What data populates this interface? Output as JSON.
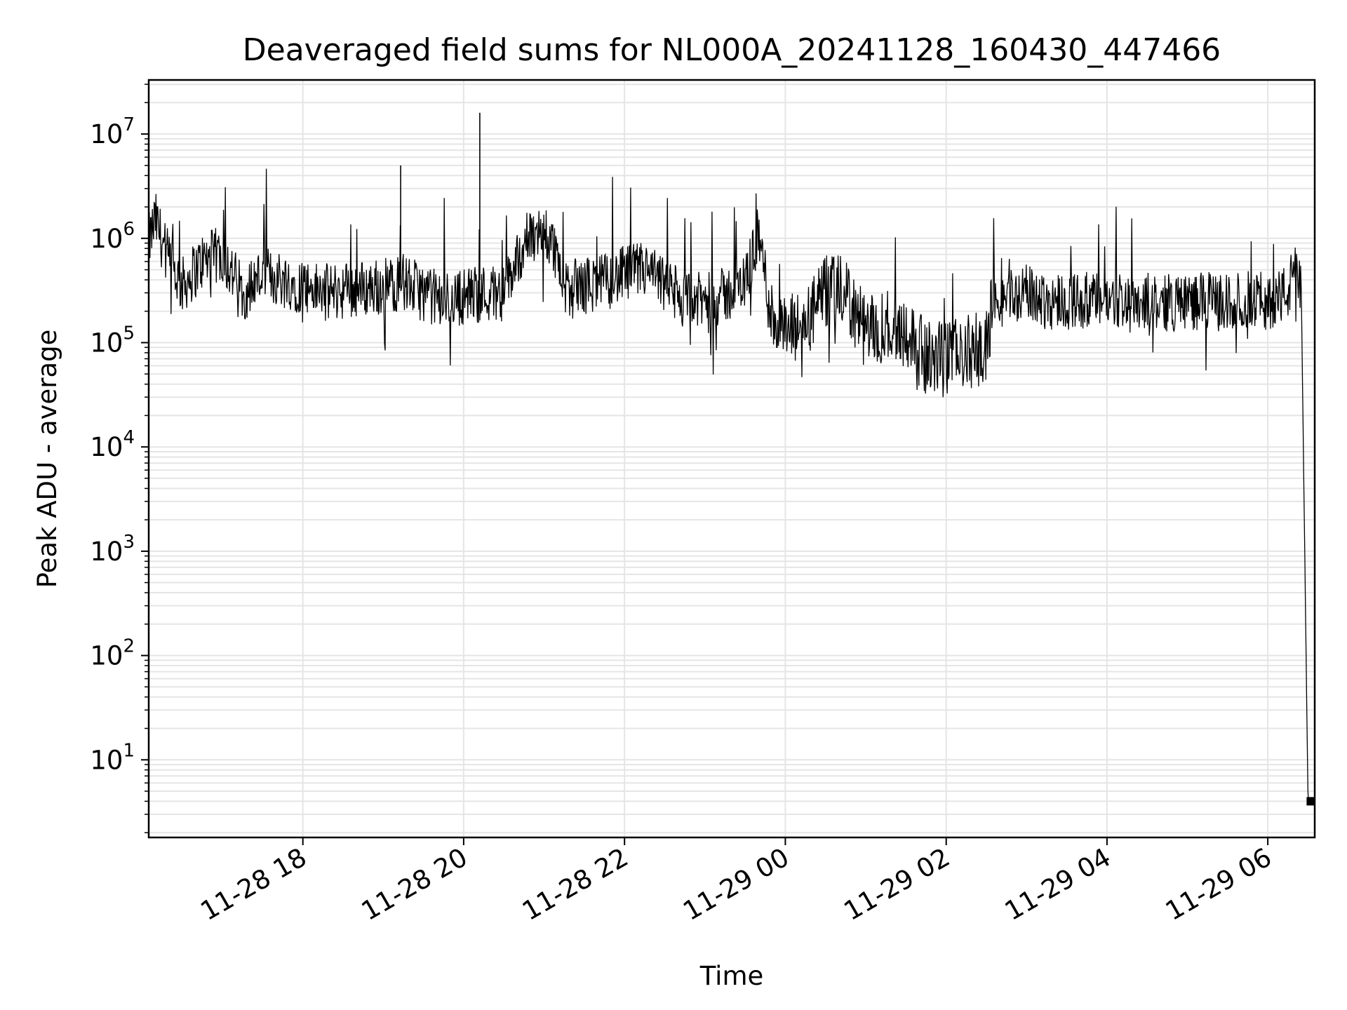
{
  "chart_data": {
    "type": "line",
    "title": "Deaveraged field sums for NL000A_20241128_160430_447466",
    "xlabel": "Time",
    "ylabel": "Peak ADU - average",
    "yscale": "log",
    "ylim": [
      1.8,
      33000000
    ],
    "xlim": [
      "2024-11-28 16:05",
      "2024-11-29 06:35"
    ],
    "grid": true,
    "line_color": "#000000",
    "grid_color": "#e5e5e5",
    "x_ticks": [
      {
        "time": "2024-11-28 18:00",
        "label": "11-28 18"
      },
      {
        "time": "2024-11-28 20:00",
        "label": "11-28 20"
      },
      {
        "time": "2024-11-28 22:00",
        "label": "11-28 22"
      },
      {
        "time": "2024-11-29 00:00",
        "label": "11-29 00"
      },
      {
        "time": "2024-11-29 02:00",
        "label": "11-29 02"
      },
      {
        "time": "2024-11-29 04:00",
        "label": "11-29 04"
      },
      {
        "time": "2024-11-29 06:00",
        "label": "11-29 06"
      }
    ],
    "y_ticks": [
      {
        "value": 10,
        "base": "10",
        "exp": "1"
      },
      {
        "value": 100,
        "base": "10",
        "exp": "2"
      },
      {
        "value": 1000,
        "base": "10",
        "exp": "3"
      },
      {
        "value": 10000,
        "base": "10",
        "exp": "4"
      },
      {
        "value": 100000,
        "base": "10",
        "exp": "5"
      },
      {
        "value": 1000000,
        "base": "10",
        "exp": "6"
      },
      {
        "value": 10000000,
        "base": "10",
        "exp": "7"
      }
    ],
    "series": [
      {
        "points": [
          [
            "2024-11-28 16:05",
            900000
          ],
          [
            "2024-11-28 16:10",
            1500000
          ],
          [
            "2024-11-28 16:20",
            600000
          ],
          [
            "2024-11-28 16:30",
            350000
          ],
          [
            "2024-11-28 16:45",
            600000
          ],
          [
            "2024-11-28 17:00",
            700000
          ],
          [
            "2024-11-28 17:15",
            300000
          ],
          [
            "2024-11-28 17:30",
            450000
          ],
          [
            "2024-11-28 17:45",
            400000
          ],
          [
            "2024-11-28 18:00",
            350000
          ],
          [
            "2024-11-28 18:15",
            300000
          ],
          [
            "2024-11-28 18:30",
            320000
          ],
          [
            "2024-11-28 18:45",
            330000
          ],
          [
            "2024-11-28 19:00",
            350000
          ],
          [
            "2024-11-28 19:15",
            380000
          ],
          [
            "2024-11-28 19:30",
            300000
          ],
          [
            "2024-11-28 19:45",
            250000
          ],
          [
            "2024-11-28 20:00",
            280000
          ],
          [
            "2024-11-28 20:15",
            300000
          ],
          [
            "2024-11-28 20:30",
            300000
          ],
          [
            "2024-11-28 20:45",
            900000
          ],
          [
            "2024-11-28 21:00",
            1200000
          ],
          [
            "2024-11-28 21:10",
            700000
          ],
          [
            "2024-11-28 21:15",
            300000
          ],
          [
            "2024-11-28 21:30",
            350000
          ],
          [
            "2024-11-28 21:45",
            380000
          ],
          [
            "2024-11-28 22:00",
            450000
          ],
          [
            "2024-11-28 22:15",
            500000
          ],
          [
            "2024-11-28 22:30",
            350000
          ],
          [
            "2024-11-28 22:45",
            250000
          ],
          [
            "2024-11-28 23:00",
            250000
          ],
          [
            "2024-11-28 23:15",
            280000
          ],
          [
            "2024-11-28 23:30",
            380000
          ],
          [
            "2024-11-28 23:40",
            1100000
          ],
          [
            "2024-11-28 23:50",
            180000
          ],
          [
            "2024-11-29 00:00",
            120000
          ],
          [
            "2024-11-29 00:15",
            150000
          ],
          [
            "2024-11-29 00:30",
            300000
          ],
          [
            "2024-11-29 00:45",
            300000
          ],
          [
            "2024-11-29 01:00",
            120000
          ],
          [
            "2024-11-29 01:15",
            150000
          ],
          [
            "2024-11-29 01:30",
            130000
          ],
          [
            "2024-11-29 01:45",
            70000
          ],
          [
            "2024-11-29 02:00",
            70000
          ],
          [
            "2024-11-29 02:15",
            80000
          ],
          [
            "2024-11-29 02:30",
            90000
          ],
          [
            "2024-11-29 02:35",
            250000
          ],
          [
            "2024-11-29 02:45",
            280000
          ],
          [
            "2024-11-29 03:00",
            300000
          ],
          [
            "2024-11-29 03:15",
            250000
          ],
          [
            "2024-11-29 03:30",
            260000
          ],
          [
            "2024-11-29 03:45",
            250000
          ],
          [
            "2024-11-29 04:00",
            250000
          ],
          [
            "2024-11-29 04:15",
            260000
          ],
          [
            "2024-11-29 04:30",
            250000
          ],
          [
            "2024-11-29 04:45",
            240000
          ],
          [
            "2024-11-29 05:00",
            250000
          ],
          [
            "2024-11-29 05:15",
            250000
          ],
          [
            "2024-11-29 05:30",
            240000
          ],
          [
            "2024-11-29 05:45",
            260000
          ],
          [
            "2024-11-29 06:00",
            250000
          ],
          [
            "2024-11-29 06:15",
            300000
          ],
          [
            "2024-11-29 06:20",
            500000
          ],
          [
            "2024-11-29 06:25",
            300000
          ],
          [
            "2024-11-29 06:30",
            4
          ],
          [
            "2024-11-29 06:35",
            4
          ]
        ]
      }
    ],
    "spikes": [
      {
        "time": "2024-11-28 19:13",
        "value": 5000000
      },
      {
        "time": "2024-11-28 20:12",
        "value": 16000000
      }
    ]
  }
}
